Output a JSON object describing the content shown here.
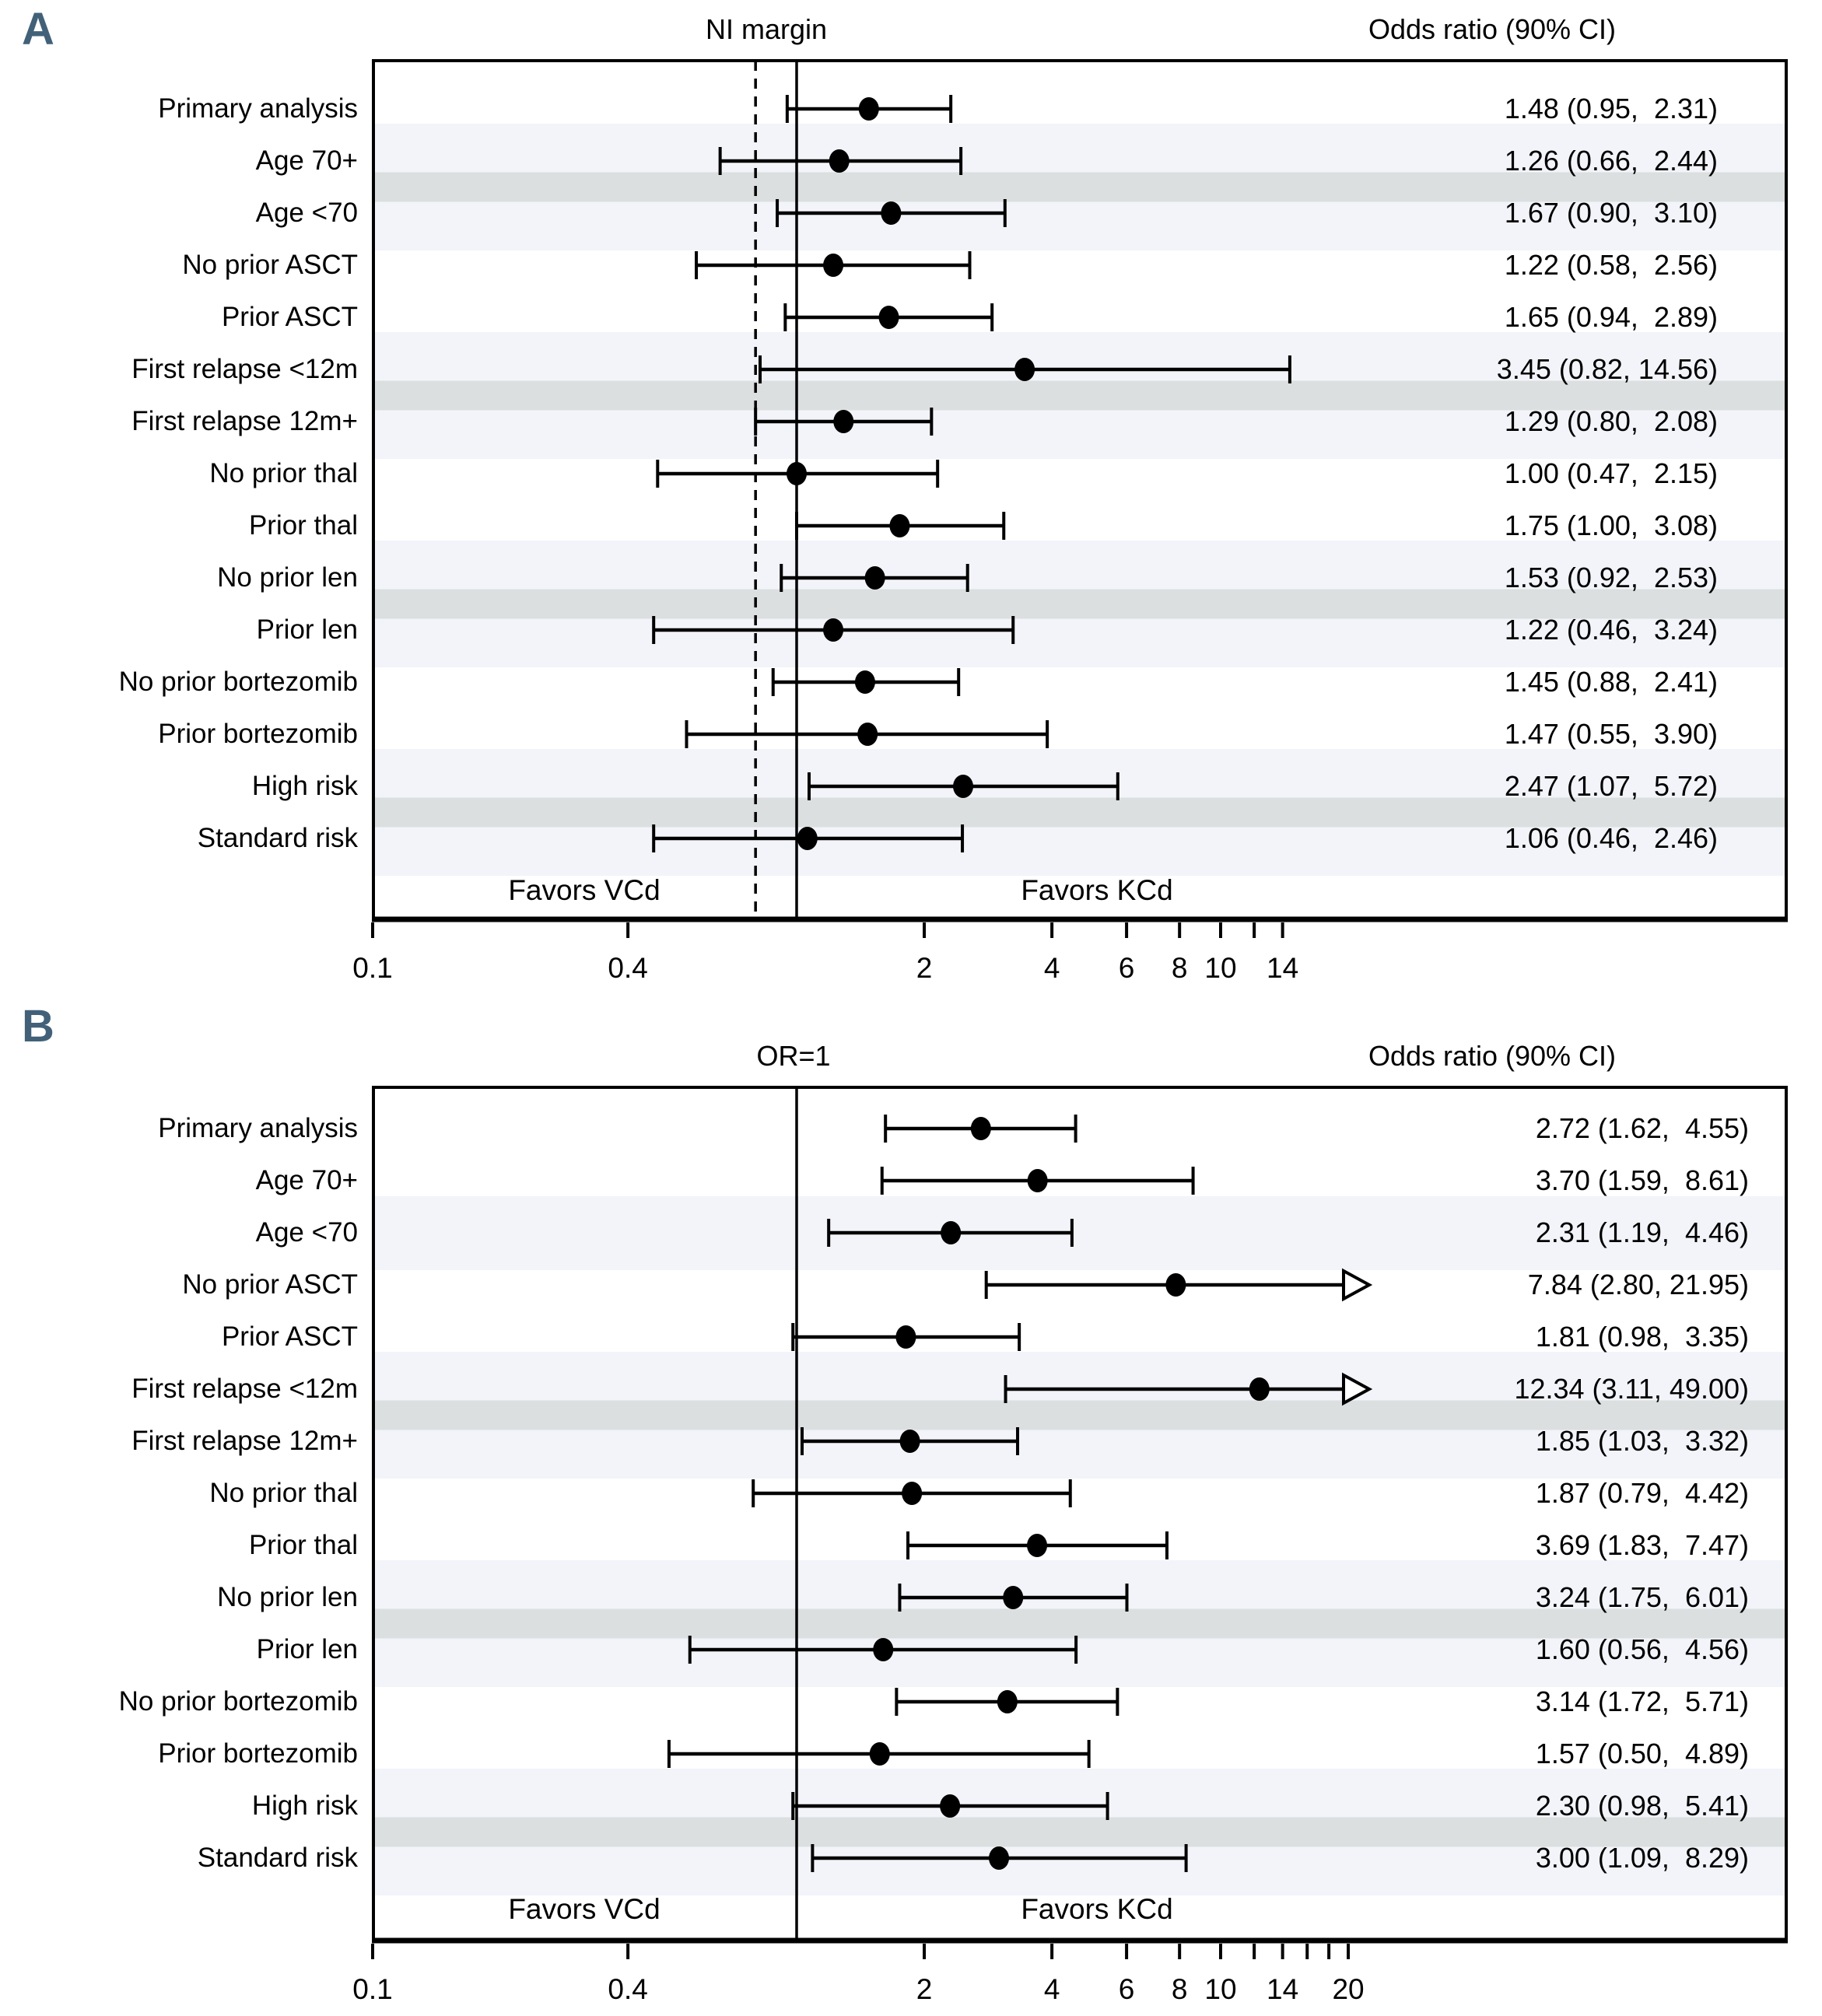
{
  "chart_data": [
    {
      "type": "forest",
      "panel_label": "A",
      "ref_line_header": "NI margin",
      "value_header": "Odds ratio (90% CI)",
      "favors_left": "Favors VCd",
      "favors_right": "Favors KCd",
      "x_scale": "log",
      "xlim": [
        0.1,
        22
      ],
      "solid_ref_line": 1,
      "dashed_ref_line": 0.8,
      "x_ticks": [
        {
          "value": 0.1,
          "label": "0.1"
        },
        {
          "value": 0.4,
          "label": "0.4"
        },
        {
          "value": 2,
          "label": "2"
        },
        {
          "value": 4,
          "label": "4"
        },
        {
          "value": 6,
          "label": "6"
        },
        {
          "value": 8,
          "label": "8"
        },
        {
          "value": 10,
          "label": "10"
        },
        {
          "value": 12,
          "label": ""
        },
        {
          "value": 14,
          "label": "14"
        }
      ],
      "rows": [
        {
          "label": "Primary analysis",
          "or": 1.48,
          "lo": 0.95,
          "hi": 2.31,
          "text": "1.48 (0.95,  2.31)",
          "clip_hi": false
        },
        {
          "label": "Age 70+",
          "or": 1.26,
          "lo": 0.66,
          "hi": 2.44,
          "text": "1.26 (0.66,  2.44)",
          "clip_hi": false
        },
        {
          "label": "Age <70",
          "or": 1.67,
          "lo": 0.9,
          "hi": 3.1,
          "text": "1.67 (0.90,  3.10)",
          "clip_hi": false
        },
        {
          "label": "No prior ASCT",
          "or": 1.22,
          "lo": 0.58,
          "hi": 2.56,
          "text": "1.22 (0.58,  2.56)",
          "clip_hi": false
        },
        {
          "label": "Prior ASCT",
          "or": 1.65,
          "lo": 0.94,
          "hi": 2.89,
          "text": "1.65 (0.94,  2.89)",
          "clip_hi": false
        },
        {
          "label": "First relapse <12m",
          "or": 3.45,
          "lo": 0.82,
          "hi": 14.56,
          "text": "3.45 (0.82, 14.56)",
          "clip_hi": false
        },
        {
          "label": "First relapse 12m+",
          "or": 1.29,
          "lo": 0.8,
          "hi": 2.08,
          "text": "1.29 (0.80,  2.08)",
          "clip_hi": false
        },
        {
          "label": "No prior thal",
          "or": 1.0,
          "lo": 0.47,
          "hi": 2.15,
          "text": "1.00 (0.47,  2.15)",
          "clip_hi": false
        },
        {
          "label": "Prior thal",
          "or": 1.75,
          "lo": 1.0,
          "hi": 3.08,
          "text": "1.75 (1.00,  3.08)",
          "clip_hi": false
        },
        {
          "label": "No prior len",
          "or": 1.53,
          "lo": 0.92,
          "hi": 2.53,
          "text": "1.53 (0.92,  2.53)",
          "clip_hi": false
        },
        {
          "label": "Prior len",
          "or": 1.22,
          "lo": 0.46,
          "hi": 3.24,
          "text": "1.22 (0.46,  3.24)",
          "clip_hi": false
        },
        {
          "label": "No prior bortezomib",
          "or": 1.45,
          "lo": 0.88,
          "hi": 2.41,
          "text": "1.45 (0.88,  2.41)",
          "clip_hi": false
        },
        {
          "label": "Prior bortezomib",
          "or": 1.47,
          "lo": 0.55,
          "hi": 3.9,
          "text": "1.47 (0.55,  3.90)",
          "clip_hi": false
        },
        {
          "label": "High risk",
          "or": 2.47,
          "lo": 1.07,
          "hi": 5.72,
          "text": "2.47 (1.07,  5.72)",
          "clip_hi": false
        },
        {
          "label": "Standard risk",
          "or": 1.06,
          "lo": 0.46,
          "hi": 2.46,
          "text": "1.06 (0.46,  2.46)",
          "clip_hi": false
        }
      ],
      "shaded_pairs": [
        {
          "rows": [
            2,
            3
          ],
          "dark_core": true
        },
        {
          "rows": [
            6,
            7
          ],
          "dark_core": true
        },
        {
          "rows": [
            10,
            11
          ],
          "dark_core": true
        },
        {
          "rows": [
            14,
            15
          ],
          "dark_core": true
        }
      ]
    },
    {
      "type": "forest",
      "panel_label": "B",
      "ref_line_header": "OR=1",
      "value_header": "Odds ratio (90% CI)",
      "favors_left": "Favors VCd",
      "favors_right": "Favors KCd",
      "x_scale": "log",
      "xlim": [
        0.1,
        22
      ],
      "solid_ref_line": 1,
      "dashed_ref_line": null,
      "x_ticks": [
        {
          "value": 0.1,
          "label": "0.1"
        },
        {
          "value": 0.4,
          "label": "0.4"
        },
        {
          "value": 2,
          "label": "2"
        },
        {
          "value": 4,
          "label": "4"
        },
        {
          "value": 6,
          "label": "6"
        },
        {
          "value": 8,
          "label": "8"
        },
        {
          "value": 10,
          "label": "10"
        },
        {
          "value": 12,
          "label": ""
        },
        {
          "value": 14,
          "label": "14"
        },
        {
          "value": 16,
          "label": ""
        },
        {
          "value": 18,
          "label": ""
        },
        {
          "value": 20,
          "label": "20"
        }
      ],
      "rows": [
        {
          "label": "Primary analysis",
          "or": 2.72,
          "lo": 1.62,
          "hi": 4.55,
          "text": "2.72 (1.62,  4.55)",
          "clip_hi": false
        },
        {
          "label": "Age 70+",
          "or": 3.7,
          "lo": 1.59,
          "hi": 8.61,
          "text": "3.70 (1.59,  8.61)",
          "clip_hi": false
        },
        {
          "label": "Age <70",
          "or": 2.31,
          "lo": 1.19,
          "hi": 4.46,
          "text": "2.31 (1.19,  4.46)",
          "clip_hi": false
        },
        {
          "label": "No prior ASCT",
          "or": 7.84,
          "lo": 2.8,
          "hi": 21.95,
          "text": "7.84 (2.80, 21.95)",
          "clip_hi": true
        },
        {
          "label": "Prior ASCT",
          "or": 1.81,
          "lo": 0.98,
          "hi": 3.35,
          "text": "1.81 (0.98,  3.35)",
          "clip_hi": false
        },
        {
          "label": "First relapse <12m",
          "or": 12.34,
          "lo": 3.11,
          "hi": 49.0,
          "text": "12.34 (3.11, 49.00)",
          "clip_hi": true
        },
        {
          "label": "First relapse 12m+",
          "or": 1.85,
          "lo": 1.03,
          "hi": 3.32,
          "text": "1.85 (1.03,  3.32)",
          "clip_hi": false
        },
        {
          "label": "No prior thal",
          "or": 1.87,
          "lo": 0.79,
          "hi": 4.42,
          "text": "1.87 (0.79,  4.42)",
          "clip_hi": false
        },
        {
          "label": "Prior thal",
          "or": 3.69,
          "lo": 1.83,
          "hi": 7.47,
          "text": "3.69 (1.83,  7.47)",
          "clip_hi": false
        },
        {
          "label": "No prior len",
          "or": 3.24,
          "lo": 1.75,
          "hi": 6.01,
          "text": "3.24 (1.75,  6.01)",
          "clip_hi": false
        },
        {
          "label": "Prior len",
          "or": 1.6,
          "lo": 0.56,
          "hi": 4.56,
          "text": "1.60 (0.56,  4.56)",
          "clip_hi": false
        },
        {
          "label": "No prior bortezomib",
          "or": 3.14,
          "lo": 1.72,
          "hi": 5.71,
          "text": "3.14 (1.72,  5.71)",
          "clip_hi": false
        },
        {
          "label": "Prior bortezomib",
          "or": 1.57,
          "lo": 0.5,
          "hi": 4.89,
          "text": "1.57 (0.50,  4.89)",
          "clip_hi": false
        },
        {
          "label": "High risk",
          "or": 2.3,
          "lo": 0.98,
          "hi": 5.41,
          "text": "2.30 (0.98,  5.41)",
          "clip_hi": false
        },
        {
          "label": "Standard risk",
          "or": 3.0,
          "lo": 1.09,
          "hi": 8.29,
          "text": "3.00 (1.09,  8.29)",
          "clip_hi": false
        }
      ],
      "shaded_pairs": [
        {
          "rows": [
            2,
            3
          ],
          "dark_core": false
        },
        {
          "rows": [
            6,
            7
          ],
          "dark_core": true
        },
        {
          "rows": [
            10,
            11
          ],
          "dark_core": true
        },
        {
          "rows": [
            14,
            15
          ],
          "dark_core": true
        }
      ]
    }
  ],
  "colors": {
    "panel_letter": "#426179",
    "stripe_light": "#f2f4f9",
    "stripe_dark": "#dcdfe0",
    "ink": "#000000"
  }
}
